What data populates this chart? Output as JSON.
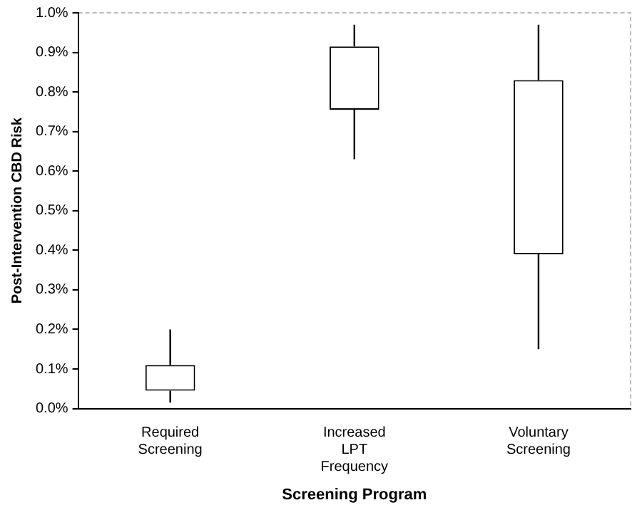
{
  "chart_data": {
    "type": "candlestick",
    "xlabel": "Screening Program",
    "ylabel": "Post-Intervention CBD Risk",
    "categories": [
      "Required Screening",
      "Increased LPT Frequency",
      "Voluntary Screening"
    ],
    "ohlc": [
      [
        0.045,
        0.2,
        0.015,
        0.11
      ],
      [
        0.755,
        0.97,
        0.63,
        0.915
      ],
      [
        0.39,
        0.97,
        0.15,
        0.83
      ]
    ],
    "ylim": [
      0,
      1
    ],
    "yticks": [
      {
        "value": 0,
        "label": "0.0%"
      },
      {
        "value": 0.1,
        "label": "0.1%"
      },
      {
        "value": 0.2,
        "label": "0.2%"
      },
      {
        "value": 0.3,
        "label": "0.3%"
      },
      {
        "value": 0.4,
        "label": "0.4%"
      },
      {
        "value": 0.5,
        "label": "0.5%"
      },
      {
        "value": 0.6,
        "label": "0.6%"
      },
      {
        "value": 0.7,
        "label": "0.7%"
      },
      {
        "value": 0.8,
        "label": "0.8%"
      },
      {
        "value": 0.9,
        "label": "0.9%"
      },
      {
        "value": 1,
        "label": "1.0%"
      }
    ],
    "grid": false,
    "legend": false
  }
}
